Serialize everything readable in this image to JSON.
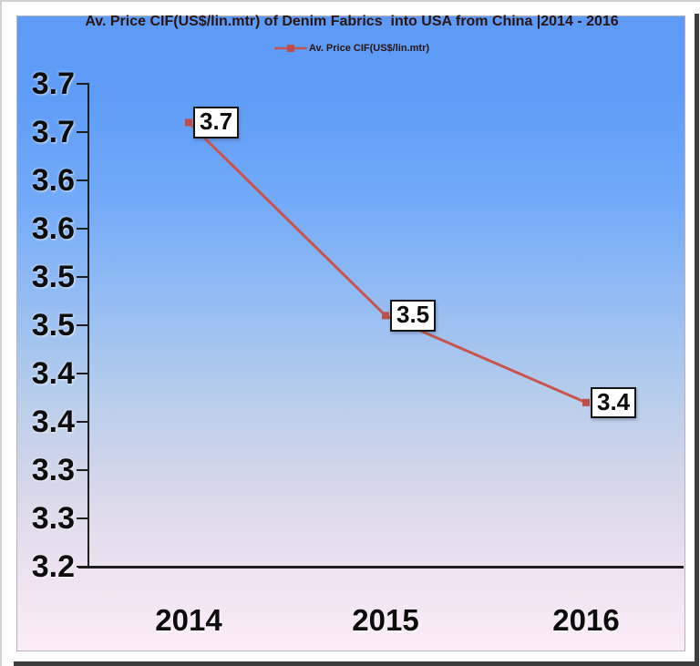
{
  "chart_data": {
    "type": "line",
    "title": "Av. Price CIF(US$/lin.mtr) of Denim Fabrics  into USA from China |2014 - 2016",
    "legend": {
      "label": "Av. Price CIF(US$/lin.mtr)",
      "position": "top-center"
    },
    "categories": [
      "2014",
      "2015",
      "2016"
    ],
    "series": [
      {
        "name": "Av. Price CIF(US$/lin.mtr)",
        "values": [
          3.7,
          3.5,
          3.4
        ],
        "values_plotted": [
          3.66,
          3.46,
          3.37
        ],
        "data_labels": [
          "3.7",
          "3.5",
          "3.4"
        ]
      }
    ],
    "y_axis": {
      "min": 3.2,
      "max": 3.7,
      "tick_interval": 0.05,
      "tick_labels_top_to_bottom": [
        "3.7",
        "3.7",
        "3.6",
        "3.6",
        "3.5",
        "3.5",
        "3.4",
        "3.4",
        "3.3",
        "3.3",
        "3.2"
      ]
    },
    "x_axis": {
      "tick_labels": [
        "2014",
        "2015",
        "2016"
      ]
    },
    "grid": false,
    "legend_position": "top",
    "colors": {
      "line": "#c9544e",
      "marker": "#bf4e48",
      "title_text": "#2a1512",
      "axis_line": "#1f1f1f",
      "tick_label_text": "#0d0d0d",
      "data_label_text": "#0d0d0d",
      "data_label_bg": "#ffffff",
      "data_label_border": "#141414",
      "background_gradient_top": "#5e9bf7",
      "background_gradient_bottom": "#fbeef9"
    }
  }
}
